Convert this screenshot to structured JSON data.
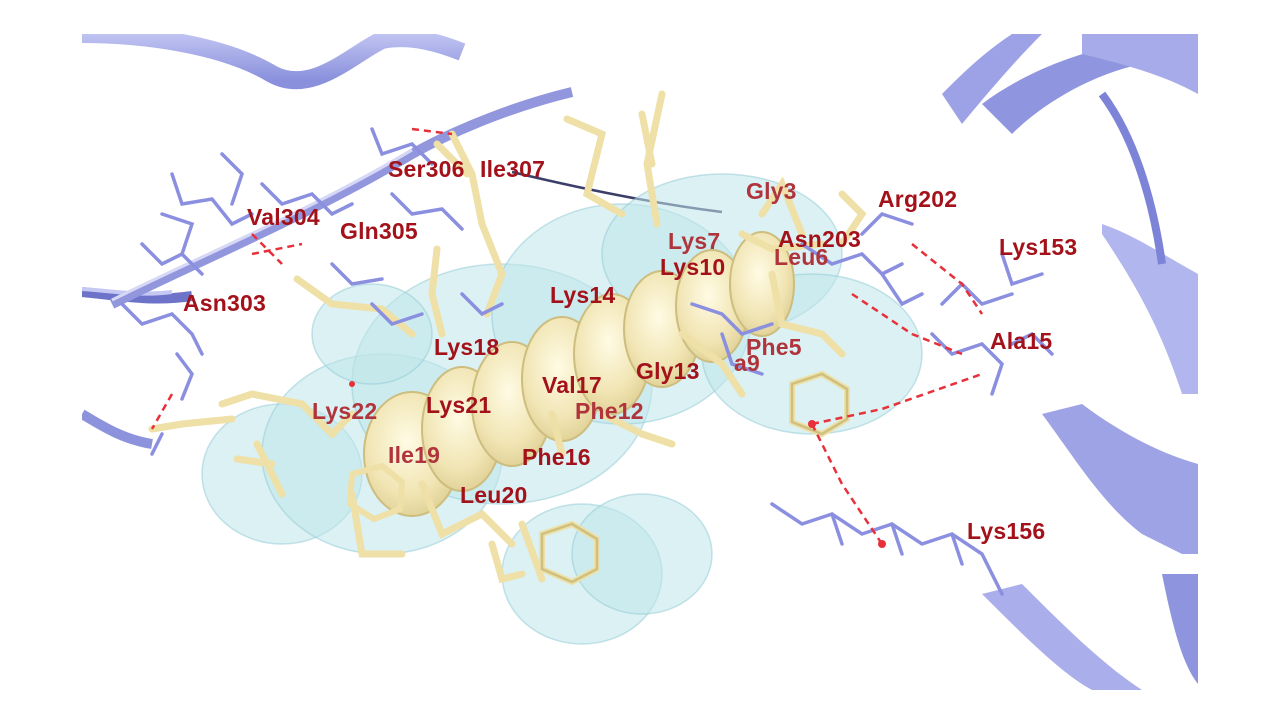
{
  "colors": {
    "label": "#a3121a",
    "label_dim": "#b0343c",
    "ribbon": "#9da3e6",
    "ribbon_dark": "#6f76cf",
    "receptor_sticks": "#8b8fe0",
    "peptide_sticks": "#eee0a6",
    "peptide_sticks_dark": "#c6b877",
    "surface": "#bfe6ea",
    "hbond": "#e8303a"
  },
  "receptor_labels": [
    "Ser306",
    "Ile307",
    "Val304",
    "Gln305",
    "Asn303",
    "Arg202",
    "Asn203",
    "Lys153",
    "Ala15",
    "Lys156"
  ],
  "peptide_labels": [
    "Gly3",
    "Lys7",
    "Lys10",
    "Leu6",
    "Lys14",
    "Lys18",
    "Phe5",
    "Val17",
    "Gly13",
    "a9",
    "Lys22",
    "Lys21",
    "Phe12",
    "Ile19",
    "Phe16",
    "Leu20"
  ]
}
